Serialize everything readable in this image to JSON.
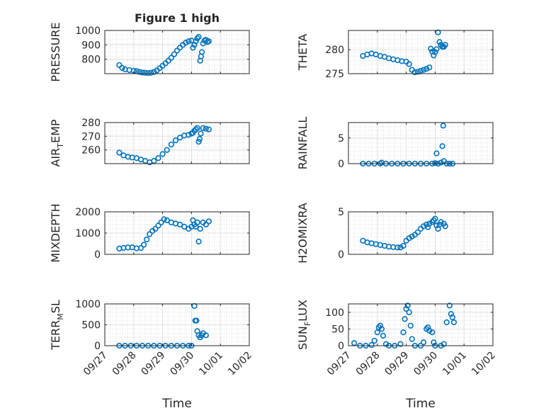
{
  "chart_data": [
    {
      "type": "scatter",
      "title": "Figure 1 high",
      "ylabel": "PRESSURE",
      "ylim": [
        700,
        1000
      ],
      "yticks": [
        800,
        900,
        1000
      ],
      "xlim": [
        "09/27",
        "10/02"
      ],
      "xlabels_shown": false,
      "grid": true,
      "color": "#0072BD",
      "points": [
        [
          0.5,
          760
        ],
        [
          0.6,
          740
        ],
        [
          0.7,
          730
        ],
        [
          0.85,
          725
        ],
        [
          1.0,
          720
        ],
        [
          1.1,
          718
        ],
        [
          1.2,
          712
        ],
        [
          1.3,
          708
        ],
        [
          1.4,
          706
        ],
        [
          1.5,
          704
        ],
        [
          1.6,
          706
        ],
        [
          1.7,
          712
        ],
        [
          1.8,
          722
        ],
        [
          1.9,
          738
        ],
        [
          2.0,
          755
        ],
        [
          2.1,
          772
        ],
        [
          2.2,
          790
        ],
        [
          2.3,
          810
        ],
        [
          2.4,
          835
        ],
        [
          2.5,
          860
        ],
        [
          2.6,
          880
        ],
        [
          2.7,
          900
        ],
        [
          2.8,
          915
        ],
        [
          2.9,
          925
        ],
        [
          3.0,
          930
        ],
        [
          3.05,
          880
        ],
        [
          3.1,
          900
        ],
        [
          3.15,
          925
        ],
        [
          3.2,
          945
        ],
        [
          3.25,
          955
        ],
        [
          3.3,
          790
        ],
        [
          3.33,
          820
        ],
        [
          3.36,
          850
        ],
        [
          3.4,
          910
        ],
        [
          3.45,
          930
        ],
        [
          3.5,
          935
        ],
        [
          3.55,
          920
        ],
        [
          3.6,
          925
        ]
      ]
    },
    {
      "type": "scatter",
      "title": "",
      "ylabel": "THETA",
      "ylim": [
        275,
        284
      ],
      "yticks": [
        275,
        280
      ],
      "xlim": [
        "09/27",
        "10/02"
      ],
      "xlabels_shown": false,
      "grid": true,
      "color": "#0072BD",
      "points": [
        [
          0.5,
          278.7
        ],
        [
          0.65,
          279.0
        ],
        [
          0.8,
          279.2
        ],
        [
          0.95,
          279.0
        ],
        [
          1.1,
          278.7
        ],
        [
          1.25,
          278.5
        ],
        [
          1.4,
          278.2
        ],
        [
          1.55,
          278.0
        ],
        [
          1.7,
          277.8
        ],
        [
          1.85,
          277.6
        ],
        [
          2.0,
          277.5
        ],
        [
          2.1,
          277.0
        ],
        [
          2.2,
          275.8
        ],
        [
          2.3,
          275.3
        ],
        [
          2.4,
          275.4
        ],
        [
          2.5,
          275.6
        ],
        [
          2.6,
          275.8
        ],
        [
          2.7,
          276.0
        ],
        [
          2.8,
          276.3
        ],
        [
          2.85,
          280.2
        ],
        [
          2.9,
          279.6
        ],
        [
          2.95,
          278.8
        ],
        [
          3.0,
          279.5
        ],
        [
          3.05,
          280.1
        ],
        [
          3.1,
          283.6
        ],
        [
          3.15,
          281.6
        ],
        [
          3.2,
          281.0
        ],
        [
          3.25,
          280.6
        ],
        [
          3.3,
          280.6
        ],
        [
          3.35,
          281.0
        ]
      ]
    },
    {
      "type": "scatter",
      "title": "",
      "ylabel": "AIR_TEMP",
      "ylim": [
        250,
        280
      ],
      "yticks": [
        260,
        270,
        280
      ],
      "xlim": [
        "09/27",
        "10/02"
      ],
      "xlabels_shown": false,
      "grid": true,
      "color": "#0072BD",
      "points": [
        [
          0.5,
          258
        ],
        [
          0.65,
          256
        ],
        [
          0.8,
          255
        ],
        [
          0.95,
          254.5
        ],
        [
          1.1,
          254
        ],
        [
          1.25,
          253
        ],
        [
          1.4,
          252
        ],
        [
          1.55,
          251
        ],
        [
          1.7,
          252
        ],
        [
          1.85,
          254
        ],
        [
          2.0,
          257
        ],
        [
          2.15,
          260
        ],
        [
          2.3,
          264
        ],
        [
          2.45,
          267
        ],
        [
          2.6,
          269
        ],
        [
          2.75,
          270.5
        ],
        [
          2.9,
          271
        ],
        [
          3.0,
          272
        ],
        [
          3.05,
          272.5
        ],
        [
          3.1,
          274
        ],
        [
          3.15,
          275
        ],
        [
          3.2,
          276
        ],
        [
          3.25,
          266
        ],
        [
          3.28,
          268
        ],
        [
          3.32,
          272
        ],
        [
          3.4,
          276
        ],
        [
          3.5,
          275.5
        ],
        [
          3.6,
          275
        ]
      ]
    },
    {
      "type": "scatter",
      "title": "",
      "ylabel": "RAINFALL",
      "ylim": [
        0,
        8
      ],
      "yticks": [
        0,
        5
      ],
      "xlim": [
        "09/27",
        "10/02"
      ],
      "xlabels_shown": false,
      "grid": true,
      "color": "#0072BD",
      "points": [
        [
          0.5,
          0
        ],
        [
          0.7,
          0
        ],
        [
          0.9,
          0
        ],
        [
          1.1,
          0
        ],
        [
          1.15,
          0.2
        ],
        [
          1.3,
          0
        ],
        [
          1.5,
          0
        ],
        [
          1.7,
          0
        ],
        [
          1.9,
          0
        ],
        [
          2.1,
          0
        ],
        [
          2.3,
          0
        ],
        [
          2.5,
          0
        ],
        [
          2.7,
          0
        ],
        [
          2.9,
          0
        ],
        [
          3.0,
          0.1
        ],
        [
          3.05,
          2.0
        ],
        [
          3.1,
          0
        ],
        [
          3.2,
          0.2
        ],
        [
          3.25,
          3.4
        ],
        [
          3.28,
          7.4
        ],
        [
          3.3,
          0.5
        ],
        [
          3.4,
          0
        ],
        [
          3.5,
          0
        ],
        [
          3.6,
          0
        ]
      ]
    },
    {
      "type": "scatter",
      "title": "",
      "ylabel": "MIXDEPTH",
      "ylim": [
        0,
        2000
      ],
      "yticks": [
        0,
        1000,
        2000
      ],
      "xlim": [
        "09/27",
        "10/02"
      ],
      "xlabels_shown": false,
      "grid": true,
      "color": "#0072BD",
      "points": [
        [
          0.5,
          270
        ],
        [
          0.65,
          300
        ],
        [
          0.8,
          320
        ],
        [
          0.95,
          330
        ],
        [
          1.1,
          280
        ],
        [
          1.25,
          300
        ],
        [
          1.35,
          450
        ],
        [
          1.45,
          700
        ],
        [
          1.55,
          950
        ],
        [
          1.65,
          1100
        ],
        [
          1.75,
          1200
        ],
        [
          1.85,
          1350
        ],
        [
          1.95,
          1500
        ],
        [
          2.05,
          1650
        ],
        [
          2.15,
          1600
        ],
        [
          2.3,
          1500
        ],
        [
          2.45,
          1450
        ],
        [
          2.6,
          1400
        ],
        [
          2.75,
          1300
        ],
        [
          2.9,
          1200
        ],
        [
          3.0,
          1300
        ],
        [
          3.05,
          1600
        ],
        [
          3.1,
          1400
        ],
        [
          3.15,
          1300
        ],
        [
          3.2,
          1500
        ],
        [
          3.25,
          600
        ],
        [
          3.3,
          1200
        ],
        [
          3.4,
          1500
        ],
        [
          3.5,
          1400
        ],
        [
          3.6,
          1550
        ]
      ]
    },
    {
      "type": "scatter",
      "title": "",
      "ylabel": "H2OMIXRA",
      "ylim": [
        0,
        5
      ],
      "yticks": [
        0,
        5
      ],
      "xlim": [
        "09/27",
        "10/02"
      ],
      "xlabels_shown": false,
      "grid": true,
      "color": "#0072BD",
      "points": [
        [
          0.5,
          1.6
        ],
        [
          0.65,
          1.4
        ],
        [
          0.8,
          1.3
        ],
        [
          0.95,
          1.2
        ],
        [
          1.1,
          1.1
        ],
        [
          1.25,
          1.0
        ],
        [
          1.4,
          0.9
        ],
        [
          1.55,
          0.85
        ],
        [
          1.7,
          0.8
        ],
        [
          1.8,
          0.8
        ],
        [
          1.9,
          1.0
        ],
        [
          2.0,
          1.6
        ],
        [
          2.1,
          1.9
        ],
        [
          2.2,
          2.1
        ],
        [
          2.3,
          2.3
        ],
        [
          2.4,
          2.6
        ],
        [
          2.5,
          3.0
        ],
        [
          2.6,
          3.3
        ],
        [
          2.7,
          3.5
        ],
        [
          2.75,
          3.2
        ],
        [
          2.8,
          3.6
        ],
        [
          2.9,
          3.8
        ],
        [
          2.95,
          4.0
        ],
        [
          3.0,
          4.2
        ],
        [
          3.05,
          3.4
        ],
        [
          3.1,
          3.0
        ],
        [
          3.15,
          3.5
        ],
        [
          3.2,
          3.8
        ],
        [
          3.3,
          3.6
        ],
        [
          3.35,
          3.3
        ]
      ]
    },
    {
      "type": "scatter",
      "title": "",
      "ylabel": "TERR_MSL",
      "ylim": [
        0,
        1000
      ],
      "yticks": [
        0,
        500,
        1000
      ],
      "xlim": [
        "09/27",
        "10/02"
      ],
      "xticklabels": [
        "09/27",
        "09/28",
        "09/29",
        "09/30",
        "10/01",
        "10/02"
      ],
      "xlabel": "Time",
      "grid": true,
      "color": "#0072BD",
      "points": [
        [
          0.5,
          0
        ],
        [
          0.7,
          0
        ],
        [
          0.9,
          0
        ],
        [
          1.1,
          0
        ],
        [
          1.3,
          0
        ],
        [
          1.5,
          0
        ],
        [
          1.7,
          0
        ],
        [
          1.9,
          0
        ],
        [
          2.1,
          0
        ],
        [
          2.3,
          0
        ],
        [
          2.5,
          0
        ],
        [
          2.7,
          0
        ],
        [
          2.9,
          0
        ],
        [
          3.0,
          0
        ],
        [
          3.1,
          950
        ],
        [
          3.13,
          600
        ],
        [
          3.17,
          600
        ],
        [
          3.2,
          350
        ],
        [
          3.25,
          250
        ],
        [
          3.3,
          200
        ],
        [
          3.35,
          250
        ],
        [
          3.4,
          300
        ],
        [
          3.5,
          250
        ]
      ]
    },
    {
      "type": "scatter",
      "title": "",
      "ylabel": "SUN_FLUX",
      "ylim": [
        0,
        125
      ],
      "yticks": [
        0,
        50,
        100
      ],
      "xlim": [
        "09/27",
        "10/02"
      ],
      "xticklabels": [
        "09/27",
        "09/28",
        "09/29",
        "09/30",
        "10/01",
        "10/02"
      ],
      "xlabel": "Time",
      "grid": true,
      "color": "#0072BD",
      "points": [
        [
          0.2,
          8
        ],
        [
          0.4,
          0
        ],
        [
          0.6,
          0
        ],
        [
          0.8,
          2
        ],
        [
          0.9,
          15
        ],
        [
          1.0,
          40
        ],
        [
          1.05,
          55
        ],
        [
          1.1,
          60
        ],
        [
          1.15,
          50
        ],
        [
          1.2,
          30
        ],
        [
          1.3,
          5
        ],
        [
          1.4,
          0
        ],
        [
          1.6,
          0
        ],
        [
          1.8,
          5
        ],
        [
          1.9,
          40
        ],
        [
          1.95,
          80
        ],
        [
          2.0,
          110
        ],
        [
          2.05,
          120
        ],
        [
          2.1,
          100
        ],
        [
          2.15,
          60
        ],
        [
          2.2,
          20
        ],
        [
          2.3,
          0
        ],
        [
          2.5,
          0
        ],
        [
          2.6,
          10
        ],
        [
          2.7,
          50
        ],
        [
          2.75,
          55
        ],
        [
          2.8,
          45
        ],
        [
          2.9,
          40
        ],
        [
          2.95,
          10
        ],
        [
          3.0,
          0
        ],
        [
          3.2,
          0
        ],
        [
          3.3,
          5
        ],
        [
          3.4,
          70
        ],
        [
          3.5,
          120
        ],
        [
          3.55,
          95
        ],
        [
          3.6,
          85
        ],
        [
          3.65,
          70
        ]
      ]
    }
  ]
}
